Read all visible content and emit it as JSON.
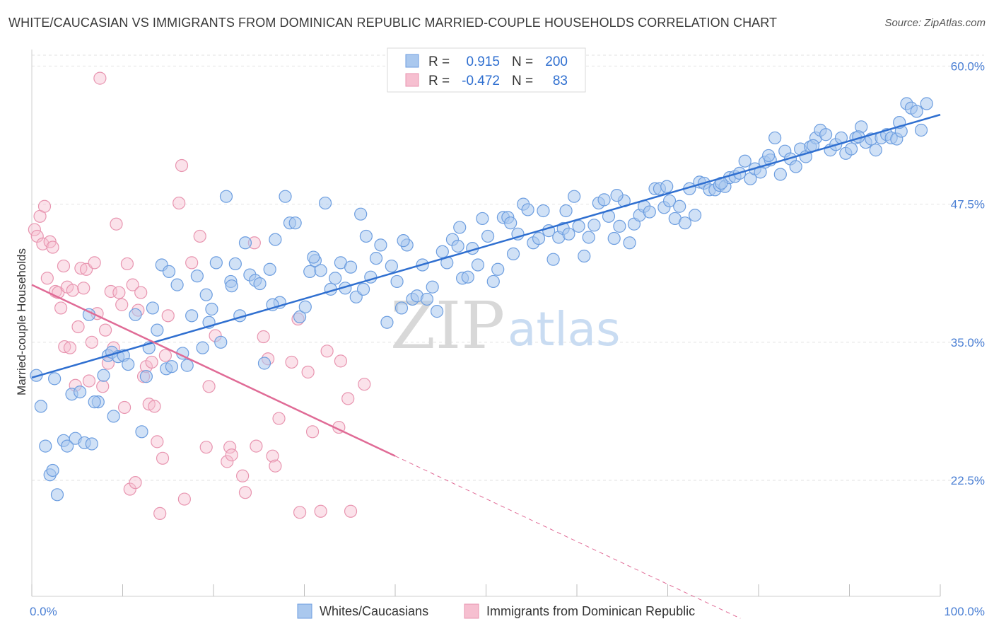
{
  "title": "WHITE/CAUCASIAN VS IMMIGRANTS FROM DOMINICAN REPUBLIC MARRIED-COUPLE HOUSEHOLDS CORRELATION CHART",
  "source": "Source: ZipAtlas.com",
  "watermark": {
    "zip": "ZIP",
    "atlas": "atlas"
  },
  "legend_top": {
    "rows": [
      {
        "r_label": "R =",
        "r_value": "0.915",
        "n_label": "N =",
        "n_value": "200"
      },
      {
        "r_label": "R =",
        "r_value": "-0.472",
        "n_label": "N =",
        "n_value": "83"
      }
    ]
  },
  "legend_bottom": {
    "items": [
      "Whites/Caucasians",
      "Immigrants from Dominican Republic"
    ]
  },
  "colors": {
    "blue_fill": "#aac8ee",
    "blue_stroke": "#6d9ee0",
    "blue_line": "#2f6fd0",
    "pink_fill": "#f6bfd0",
    "pink_stroke": "#e895b0",
    "pink_line": "#e06b96",
    "tick_text": "#4a7fd4",
    "grid": "#e2e2e2"
  },
  "chart_data": {
    "type": "scatter",
    "title": "WHITE/CAUCASIAN VS IMMIGRANTS FROM DOMINICAN REPUBLIC MARRIED-COUPLE HOUSEHOLDS CORRELATION CHART",
    "xlabel": "",
    "ylabel": "Married-couple Households",
    "xlim": [
      0,
      100
    ],
    "ylim": [
      12.0,
      61.5
    ],
    "x_tick_labels": [
      "0.0%",
      "100.0%"
    ],
    "y_ticks": [
      22.5,
      35.0,
      47.5,
      60.0
    ],
    "y_tick_labels": [
      "22.5%",
      "35.0%",
      "47.5%",
      "60.0%"
    ],
    "grid": true,
    "legend_position": "top-center",
    "series": [
      {
        "name": "Whites/Caucasians",
        "trend": {
          "x": [
            0,
            100
          ],
          "y": [
            31.8,
            55.6
          ]
        },
        "points": [
          [
            0.5,
            32.0
          ],
          [
            1.0,
            29.2
          ],
          [
            1.5,
            25.6
          ],
          [
            2.0,
            23.0
          ],
          [
            2.3,
            23.4
          ],
          [
            2.8,
            21.2
          ],
          [
            3.5,
            26.1
          ],
          [
            3.9,
            25.6
          ],
          [
            4.4,
            30.3
          ],
          [
            4.8,
            26.3
          ],
          [
            5.3,
            30.5
          ],
          [
            5.8,
            25.9
          ],
          [
            6.3,
            37.5
          ],
          [
            6.6,
            25.8
          ],
          [
            7.3,
            29.6
          ],
          [
            7.9,
            32.0
          ],
          [
            8.4,
            33.8
          ],
          [
            8.8,
            34.1
          ],
          [
            9.5,
            33.7
          ],
          [
            10.1,
            33.8
          ],
          [
            10.6,
            33.0
          ],
          [
            11.4,
            37.5
          ],
          [
            12.1,
            26.9
          ],
          [
            12.6,
            31.9
          ],
          [
            12.9,
            34.5
          ],
          [
            13.3,
            38.1
          ],
          [
            13.8,
            36.1
          ],
          [
            14.3,
            42.0
          ],
          [
            14.8,
            32.6
          ],
          [
            15.4,
            32.8
          ],
          [
            16.0,
            40.2
          ],
          [
            16.6,
            34.0
          ],
          [
            17.1,
            32.9
          ],
          [
            17.6,
            37.4
          ],
          [
            18.2,
            41.0
          ],
          [
            18.8,
            34.5
          ],
          [
            19.2,
            39.3
          ],
          [
            19.8,
            38.0
          ],
          [
            20.3,
            42.2
          ],
          [
            20.8,
            35.0
          ],
          [
            21.4,
            48.2
          ],
          [
            21.9,
            40.5
          ],
          [
            22.4,
            42.1
          ],
          [
            22.9,
            37.4
          ],
          [
            23.5,
            44.0
          ],
          [
            24.0,
            41.1
          ],
          [
            24.6,
            40.6
          ],
          [
            25.1,
            40.3
          ],
          [
            25.6,
            33.1
          ],
          [
            26.2,
            41.6
          ],
          [
            26.8,
            44.3
          ],
          [
            27.3,
            38.6
          ],
          [
            27.9,
            48.2
          ],
          [
            28.4,
            45.8
          ],
          [
            29.0,
            45.8
          ],
          [
            29.5,
            37.3
          ],
          [
            30.1,
            38.2
          ],
          [
            30.6,
            41.4
          ],
          [
            31.2,
            42.4
          ],
          [
            31.8,
            41.5
          ],
          [
            32.3,
            47.6
          ],
          [
            32.9,
            39.8
          ],
          [
            33.4,
            40.8
          ],
          [
            34.0,
            42.2
          ],
          [
            34.5,
            39.9
          ],
          [
            35.1,
            41.8
          ],
          [
            35.7,
            39.1
          ],
          [
            36.2,
            46.6
          ],
          [
            36.8,
            44.6
          ],
          [
            37.3,
            40.9
          ],
          [
            37.9,
            42.6
          ],
          [
            38.4,
            43.8
          ],
          [
            39.1,
            36.8
          ],
          [
            39.6,
            41.9
          ],
          [
            40.2,
            40.5
          ],
          [
            40.7,
            38.1
          ],
          [
            41.3,
            43.8
          ],
          [
            41.9,
            38.9
          ],
          [
            42.4,
            39.2
          ],
          [
            43.0,
            42.0
          ],
          [
            43.5,
            38.9
          ],
          [
            44.1,
            40.0
          ],
          [
            44.6,
            37.8
          ],
          [
            45.2,
            43.2
          ],
          [
            45.7,
            42.2
          ],
          [
            46.3,
            44.3
          ],
          [
            46.9,
            43.7
          ],
          [
            47.4,
            40.8
          ],
          [
            48.0,
            40.9
          ],
          [
            48.5,
            43.5
          ],
          [
            49.1,
            42.0
          ],
          [
            49.6,
            46.2
          ],
          [
            50.2,
            44.6
          ],
          [
            50.8,
            40.5
          ],
          [
            51.3,
            41.6
          ],
          [
            51.9,
            46.3
          ],
          [
            52.4,
            46.3
          ],
          [
            53.0,
            43.0
          ],
          [
            53.5,
            44.8
          ],
          [
            54.1,
            47.5
          ],
          [
            54.6,
            47.0
          ],
          [
            55.2,
            44.0
          ],
          [
            55.8,
            44.4
          ],
          [
            56.3,
            46.9
          ],
          [
            56.9,
            45.1
          ],
          [
            57.4,
            42.5
          ],
          [
            58.0,
            44.5
          ],
          [
            58.5,
            45.3
          ],
          [
            59.1,
            44.8
          ],
          [
            59.7,
            48.2
          ],
          [
            60.2,
            45.5
          ],
          [
            60.8,
            42.8
          ],
          [
            61.3,
            44.5
          ],
          [
            61.9,
            45.6
          ],
          [
            62.4,
            47.6
          ],
          [
            63.0,
            47.9
          ],
          [
            63.5,
            46.4
          ],
          [
            64.1,
            44.4
          ],
          [
            64.7,
            45.5
          ],
          [
            65.2,
            47.8
          ],
          [
            65.8,
            44.0
          ],
          [
            66.3,
            45.7
          ],
          [
            66.9,
            46.5
          ],
          [
            67.4,
            47.3
          ],
          [
            68.0,
            46.8
          ],
          [
            68.6,
            48.9
          ],
          [
            69.1,
            48.9
          ],
          [
            69.6,
            47.2
          ],
          [
            70.2,
            47.8
          ],
          [
            70.8,
            46.2
          ],
          [
            71.3,
            47.3
          ],
          [
            71.9,
            45.8
          ],
          [
            72.4,
            48.9
          ],
          [
            73.0,
            46.5
          ],
          [
            73.5,
            49.5
          ],
          [
            74.0,
            49.4
          ],
          [
            74.6,
            48.8
          ],
          [
            75.2,
            48.8
          ],
          [
            75.7,
            49.2
          ],
          [
            76.3,
            49.1
          ],
          [
            76.8,
            49.9
          ],
          [
            77.4,
            50.0
          ],
          [
            77.9,
            50.3
          ],
          [
            78.5,
            51.4
          ],
          [
            79.1,
            49.8
          ],
          [
            79.6,
            50.7
          ],
          [
            80.2,
            50.4
          ],
          [
            80.7,
            51.3
          ],
          [
            81.3,
            51.5
          ],
          [
            81.8,
            53.5
          ],
          [
            82.4,
            50.2
          ],
          [
            82.9,
            52.3
          ],
          [
            83.5,
            51.6
          ],
          [
            84.1,
            50.9
          ],
          [
            84.6,
            52.5
          ],
          [
            85.2,
            51.8
          ],
          [
            85.7,
            52.7
          ],
          [
            86.3,
            53.5
          ],
          [
            86.8,
            54.2
          ],
          [
            87.4,
            53.8
          ],
          [
            87.9,
            52.4
          ],
          [
            88.5,
            52.9
          ],
          [
            89.1,
            53.5
          ],
          [
            89.6,
            52.1
          ],
          [
            90.2,
            52.5
          ],
          [
            90.7,
            53.5
          ],
          [
            91.3,
            54.5
          ],
          [
            91.8,
            53.1
          ],
          [
            92.4,
            53.4
          ],
          [
            92.9,
            52.4
          ],
          [
            93.5,
            53.5
          ],
          [
            94.1,
            53.8
          ],
          [
            94.6,
            53.5
          ],
          [
            95.2,
            53.4
          ],
          [
            95.7,
            54.1
          ],
          [
            96.3,
            56.6
          ],
          [
            96.8,
            56.2
          ],
          [
            97.4,
            55.9
          ],
          [
            97.9,
            54.2
          ],
          [
            98.5,
            56.6
          ],
          [
            2.5,
            31.7
          ],
          [
            6.9,
            29.6
          ],
          [
            9.0,
            28.3
          ],
          [
            15.1,
            41.4
          ],
          [
            19.5,
            36.8
          ],
          [
            22.0,
            40.1
          ],
          [
            26.5,
            38.4
          ],
          [
            31.0,
            42.7
          ],
          [
            36.5,
            39.8
          ],
          [
            40.9,
            44.2
          ],
          [
            47.1,
            45.4
          ],
          [
            52.7,
            45.8
          ],
          [
            58.8,
            46.9
          ],
          [
            64.4,
            48.3
          ],
          [
            69.9,
            49.1
          ],
          [
            75.9,
            49.4
          ],
          [
            81.1,
            51.9
          ],
          [
            86.0,
            52.8
          ],
          [
            91.0,
            53.6
          ],
          [
            95.5,
            54.9
          ]
        ]
      },
      {
        "name": "Immigrants from Dominican Republic",
        "trend": {
          "x": [
            0,
            40
          ],
          "y": [
            40.2,
            24.7
          ]
        },
        "trend_dashed": {
          "x": [
            40,
            78
          ],
          "y": [
            24.7,
            10.0
          ]
        },
        "points": [
          [
            0.3,
            45.2
          ],
          [
            0.6,
            44.6
          ],
          [
            0.9,
            46.4
          ],
          [
            1.2,
            43.9
          ],
          [
            1.4,
            47.3
          ],
          [
            1.7,
            40.8
          ],
          [
            2.0,
            44.1
          ],
          [
            2.3,
            43.6
          ],
          [
            2.6,
            39.6
          ],
          [
            2.9,
            39.5
          ],
          [
            3.2,
            38.1
          ],
          [
            3.5,
            41.9
          ],
          [
            3.6,
            34.6
          ],
          [
            3.9,
            40.0
          ],
          [
            4.2,
            34.5
          ],
          [
            4.5,
            39.7
          ],
          [
            4.8,
            31.1
          ],
          [
            5.1,
            36.4
          ],
          [
            5.4,
            41.7
          ],
          [
            5.7,
            39.9
          ],
          [
            6.0,
            41.6
          ],
          [
            6.3,
            31.5
          ],
          [
            6.6,
            35.0
          ],
          [
            6.9,
            42.2
          ],
          [
            7.2,
            37.6
          ],
          [
            7.5,
            58.9
          ],
          [
            7.8,
            31.0
          ],
          [
            8.1,
            36.1
          ],
          [
            8.4,
            33.1
          ],
          [
            8.7,
            39.6
          ],
          [
            9.0,
            34.5
          ],
          [
            9.3,
            45.7
          ],
          [
            9.6,
            39.5
          ],
          [
            9.9,
            38.4
          ],
          [
            10.2,
            29.1
          ],
          [
            10.5,
            42.1
          ],
          [
            10.8,
            21.7
          ],
          [
            11.1,
            40.2
          ],
          [
            11.4,
            22.3
          ],
          [
            11.7,
            37.9
          ],
          [
            12.0,
            39.5
          ],
          [
            12.3,
            31.9
          ],
          [
            12.6,
            32.8
          ],
          [
            12.9,
            29.4
          ],
          [
            13.2,
            33.2
          ],
          [
            13.5,
            29.2
          ],
          [
            13.8,
            26.0
          ],
          [
            14.1,
            19.5
          ],
          [
            14.4,
            24.5
          ],
          [
            14.7,
            33.8
          ],
          [
            15.0,
            37.4
          ],
          [
            16.2,
            47.6
          ],
          [
            16.5,
            51.0
          ],
          [
            16.8,
            20.8
          ],
          [
            17.6,
            42.2
          ],
          [
            18.5,
            44.6
          ],
          [
            19.2,
            25.5
          ],
          [
            19.5,
            31.0
          ],
          [
            20.2,
            35.6
          ],
          [
            21.5,
            24.2
          ],
          [
            21.8,
            25.5
          ],
          [
            22.0,
            24.8
          ],
          [
            23.2,
            22.9
          ],
          [
            23.5,
            21.4
          ],
          [
            24.5,
            44.0
          ],
          [
            24.7,
            25.6
          ],
          [
            25.5,
            35.5
          ],
          [
            26.0,
            33.5
          ],
          [
            26.5,
            24.7
          ],
          [
            26.8,
            23.8
          ],
          [
            27.2,
            28.1
          ],
          [
            28.6,
            33.2
          ],
          [
            29.3,
            37.1
          ],
          [
            29.5,
            19.6
          ],
          [
            30.4,
            32.3
          ],
          [
            30.9,
            26.9
          ],
          [
            31.8,
            19.7
          ],
          [
            32.5,
            34.2
          ],
          [
            33.8,
            27.3
          ],
          [
            34.0,
            33.3
          ],
          [
            34.8,
            29.9
          ],
          [
            35.1,
            19.7
          ],
          [
            36.6,
            31.2
          ]
        ]
      }
    ]
  }
}
